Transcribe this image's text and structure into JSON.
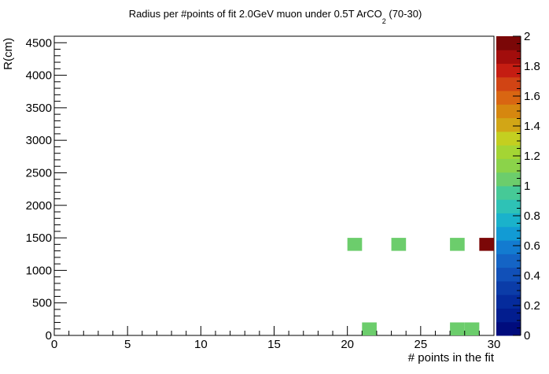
{
  "chart_data": {
    "type": "heatmap",
    "title": "Radius per #points of fit 2.0GeV muon under 0.5T ArCO",
    "title_subscript": "2",
    "title_suffix": " (70-30)",
    "xlabel": "# points in the fit",
    "ylabel": "R(cm)",
    "xlim": [
      0,
      30
    ],
    "ylim": [
      0,
      4600
    ],
    "x_ticks": [
      "0",
      "5",
      "10",
      "15",
      "20",
      "25",
      "30"
    ],
    "y_ticks": [
      "0",
      "500",
      "1000",
      "1500",
      "2000",
      "2500",
      "3000",
      "3500",
      "4000",
      "4500"
    ],
    "zlim": [
      0,
      2
    ],
    "z_ticks": [
      "0",
      "0.2",
      "0.4",
      "0.6",
      "0.8",
      "1",
      "1.2",
      "1.4",
      "1.6",
      "1.8",
      "2"
    ],
    "bin_width_x": 1,
    "bin_height_y": 200,
    "cells": [
      {
        "x": 20,
        "y": 1300,
        "z": 1
      },
      {
        "x": 23,
        "y": 1300,
        "z": 1
      },
      {
        "x": 27,
        "y": 1300,
        "z": 1
      },
      {
        "x": 29,
        "y": 1300,
        "z": 2
      },
      {
        "x": 21,
        "y": 0,
        "z": 1
      },
      {
        "x": 27,
        "y": 0,
        "z": 1
      },
      {
        "x": 28,
        "y": 0,
        "z": 1
      }
    ],
    "palette": [
      "#000c7d",
      "#021d8f",
      "#052b9c",
      "#0b3ca8",
      "#1150b8",
      "#1464c5",
      "#137bd0",
      "#129bd4",
      "#1ab2cb",
      "#2ec2b6",
      "#46c997",
      "#6ccd6c",
      "#8bd34a",
      "#a4d534",
      "#c4cf20",
      "#d2a616",
      "#d6870f",
      "#d96612",
      "#d14414",
      "#c51d12",
      "#a20d0c",
      "#7b0707"
    ],
    "grid": false,
    "legend": "color-bar-right"
  }
}
